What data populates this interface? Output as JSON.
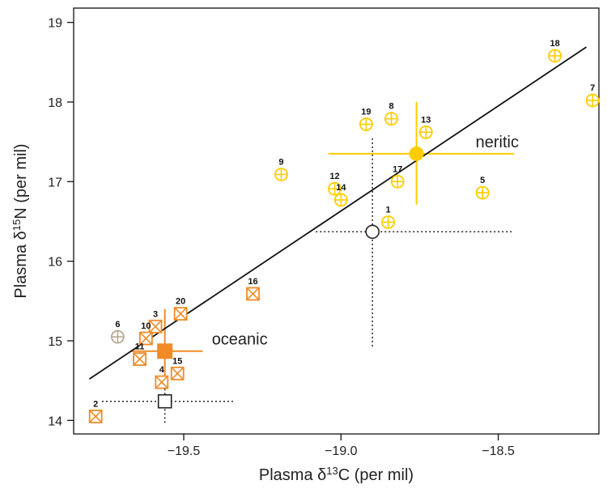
{
  "chart_data": {
    "type": "scatter",
    "title": "",
    "xlabel": {
      "prefix": "Plasma δ",
      "sup": "13",
      "suffix": "C (per mil)"
    },
    "ylabel": {
      "prefix": "Plasma δ",
      "sup": "15",
      "suffix": "N (per mil)"
    },
    "xlim": [
      -19.85,
      -18.18
    ],
    "ylim": [
      13.83,
      19.18
    ],
    "xticks": [
      -19.5,
      -19.0,
      -18.5
    ],
    "xtick_labels": [
      "−19.5",
      "−19.0",
      "−18.5"
    ],
    "yticks": [
      14,
      15,
      16,
      17,
      18,
      19
    ],
    "ytick_labels": [
      "14",
      "15",
      "16",
      "17",
      "18",
      "19"
    ],
    "grid": false,
    "colors": {
      "neritic": "#FFCC00",
      "oceanic": "#F08B26",
      "unassigned": "#B5AA94",
      "reference": "#222222",
      "line": "#111111"
    },
    "series": [
      {
        "group": "neritic",
        "marker": "circle-plus",
        "points": [
          {
            "id": "1",
            "x": -18.85,
            "y": 16.49
          },
          {
            "id": "5",
            "x": -18.55,
            "y": 16.86
          },
          {
            "id": "7",
            "x": -18.2,
            "y": 18.02
          },
          {
            "id": "8",
            "x": -18.84,
            "y": 17.79
          },
          {
            "id": "9",
            "x": -19.19,
            "y": 17.09
          },
          {
            "id": "12",
            "x": -19.02,
            "y": 16.91
          },
          {
            "id": "13",
            "x": -18.73,
            "y": 17.62
          },
          {
            "id": "14",
            "x": -19.0,
            "y": 16.77
          },
          {
            "id": "17",
            "x": -18.82,
            "y": 17.0
          },
          {
            "id": "18",
            "x": -18.32,
            "y": 18.58
          },
          {
            "id": "19",
            "x": -18.92,
            "y": 17.72
          }
        ]
      },
      {
        "group": "oceanic",
        "marker": "square-x",
        "points": [
          {
            "id": "2",
            "x": -19.78,
            "y": 14.05
          },
          {
            "id": "3",
            "x": -19.59,
            "y": 15.18
          },
          {
            "id": "4",
            "x": -19.57,
            "y": 14.48
          },
          {
            "id": "10",
            "x": -19.62,
            "y": 15.03
          },
          {
            "id": "11",
            "x": -19.64,
            "y": 14.77
          },
          {
            "id": "15",
            "x": -19.52,
            "y": 14.59
          },
          {
            "id": "16",
            "x": -19.28,
            "y": 15.59
          },
          {
            "id": "20",
            "x": -19.51,
            "y": 15.34
          }
        ]
      },
      {
        "group": "unassigned",
        "marker": "circle-plus",
        "points": [
          {
            "id": "6",
            "x": -19.71,
            "y": 15.05
          }
        ]
      }
    ],
    "group_means": [
      {
        "label": "neritic",
        "marker": "filled-circle",
        "x": -18.76,
        "y": 17.35,
        "x_range": [
          -19.04,
          -18.45
        ],
        "y_range": [
          16.71,
          18.0
        ]
      },
      {
        "label": "oceanic",
        "marker": "filled-square",
        "x": -19.56,
        "y": 14.87,
        "x_range": [
          -19.67,
          -19.44
        ],
        "y_range": [
          14.56,
          15.4
        ]
      }
    ],
    "reference_points": [
      {
        "marker": "open-circle",
        "x": -18.9,
        "y": 16.37,
        "x_range": [
          -19.08,
          -18.45
        ],
        "y_range": [
          14.93,
          17.56
        ]
      },
      {
        "marker": "open-square",
        "x": -19.56,
        "y": 14.24,
        "x_range": [
          -19.76,
          -19.34
        ],
        "y_range": [
          13.97,
          14.41
        ]
      }
    ],
    "regression_line": {
      "x": [
        -19.8,
        -18.22
      ],
      "y": [
        14.52,
        18.69
      ]
    }
  }
}
